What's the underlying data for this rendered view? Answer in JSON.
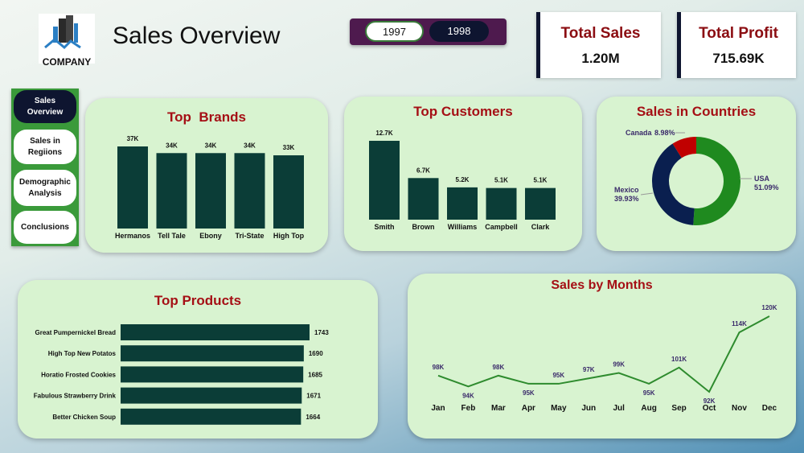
{
  "header": {
    "logo_text": "COMPANY",
    "title": "Sales Overview"
  },
  "year_slicer": {
    "options": [
      "1997",
      "1998"
    ],
    "selected": "1997"
  },
  "kpis": [
    {
      "label": "Total Sales",
      "value": "1.20M"
    },
    {
      "label": "Total Profit",
      "value": "715.69K"
    }
  ],
  "nav": [
    {
      "label": "Sales Overview",
      "active": true
    },
    {
      "label": "Sales in Regiions"
    },
    {
      "label": "Demographic Analysis"
    },
    {
      "label": "Conclusions"
    }
  ],
  "colors": {
    "bar": "#0b3d37",
    "line": "#2e8b2e",
    "usa": "#1f8a1f",
    "mexico": "#0a1f4f",
    "canada": "#c00000",
    "title": "#a50f15"
  },
  "chart_data": [
    {
      "id": "brands",
      "type": "bar",
      "title": "Top  Brands",
      "categories": [
        "Hermanos",
        "Tell Tale",
        "Ebony",
        "Tri-State",
        "High Top"
      ],
      "values": [
        37,
        34,
        34,
        34,
        33
      ],
      "labels": [
        "37K",
        "34K",
        "34K",
        "34K",
        "33K"
      ]
    },
    {
      "id": "customers",
      "type": "bar",
      "title": "Top Customers",
      "categories": [
        "Smith",
        "Brown",
        "Williams",
        "Campbell",
        "Clark"
      ],
      "values": [
        12.7,
        6.7,
        5.2,
        5.1,
        5.1
      ],
      "labels": [
        "12.7K",
        "6.7K",
        "5.2K",
        "5.1K",
        "5.1K"
      ]
    },
    {
      "id": "countries",
      "type": "pie",
      "title": "Sales in Countries",
      "categories": [
        "USA",
        "Mexico",
        "Canada"
      ],
      "values": [
        51.09,
        39.93,
        8.98
      ],
      "labels": [
        "51.09%",
        "39.93%",
        "8.98%"
      ]
    },
    {
      "id": "products",
      "type": "bar",
      "orientation": "horizontal",
      "title": "Top Products",
      "categories": [
        "Great Pumpernickel Bread",
        "High Top New Potatos",
        "Horatio Frosted Cookies",
        "Fabulous Strawberry Drink",
        "Better Chicken Soup"
      ],
      "values": [
        1743,
        1690,
        1685,
        1671,
        1664
      ],
      "labels": [
        "1743",
        "1690",
        "1685",
        "1671",
        "1664"
      ]
    },
    {
      "id": "months",
      "type": "line",
      "title": "Sales by Months",
      "categories": [
        "Jan",
        "Feb",
        "Mar",
        "Apr",
        "May",
        "Jun",
        "Jul",
        "Aug",
        "Sep",
        "Oct",
        "Nov",
        "Dec"
      ],
      "values": [
        98,
        94,
        98,
        95,
        95,
        97,
        99,
        95,
        101,
        92,
        114,
        120
      ],
      "labels": [
        "98K",
        "94K",
        "98K",
        "95K",
        "95K",
        "97K",
        "99K",
        "95K",
        "101K",
        "92K",
        "114K",
        "120K"
      ]
    }
  ]
}
